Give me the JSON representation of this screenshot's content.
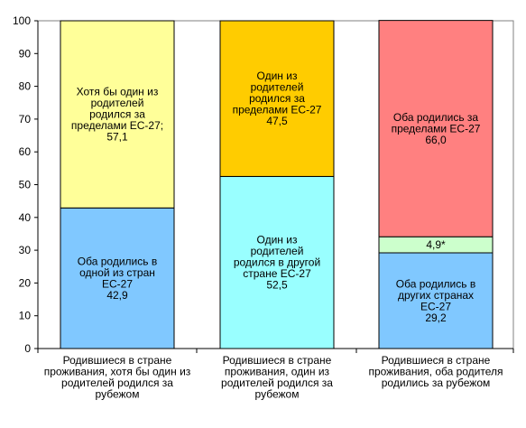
{
  "chart_data": {
    "type": "bar",
    "stacked": true,
    "ylim": [
      0,
      100
    ],
    "yticks": [
      0,
      10,
      20,
      30,
      40,
      50,
      60,
      70,
      80,
      90,
      100
    ],
    "grid": false,
    "categories": [
      [
        "Родившиеся в стране",
        "проживания, хотя бы один из",
        "родителей родился за",
        "рубежом"
      ],
      [
        "Родившиеся в стране",
        "проживания, один из",
        "родителей родился за",
        "рубежом"
      ],
      [
        "Родившиеся в стране",
        "проживания, оба родителя",
        "родились за рубежом"
      ]
    ],
    "stacks": [
      [
        {
          "value": 42.9,
          "color": "#80c8ff",
          "label": [
            "Оба родились в",
            "одной из стран",
            "ЕС-27",
            "42,9"
          ]
        },
        {
          "value": 57.1,
          "color": "#ffff99",
          "label": [
            "Хотя бы один из",
            "родителей",
            "родился за",
            "пределами ЕС-27;",
            "57,1"
          ]
        }
      ],
      [
        {
          "value": 52.5,
          "color": "#99ffff",
          "label": [
            "Один из",
            "родителей",
            "родился в другой",
            "стране ЕС-27",
            "52,5"
          ]
        },
        {
          "value": 47.5,
          "color": "#ffcc00",
          "label": [
            "Один из",
            "родителей",
            "родился за",
            "пределами ЕС-27",
            "47,5"
          ]
        }
      ],
      [
        {
          "value": 29.2,
          "color": "#80c8ff",
          "label": [
            "Оба родились в",
            "других странах",
            "ЕС-27",
            "29,2"
          ]
        },
        {
          "value": 4.9,
          "color": "#ccffcc",
          "label": [
            "4,9*"
          ]
        },
        {
          "value": 66.0,
          "color": "#ff8080",
          "label": [
            "Оба родились за",
            "пределами ЕС-27",
            "66,0"
          ]
        }
      ]
    ]
  }
}
